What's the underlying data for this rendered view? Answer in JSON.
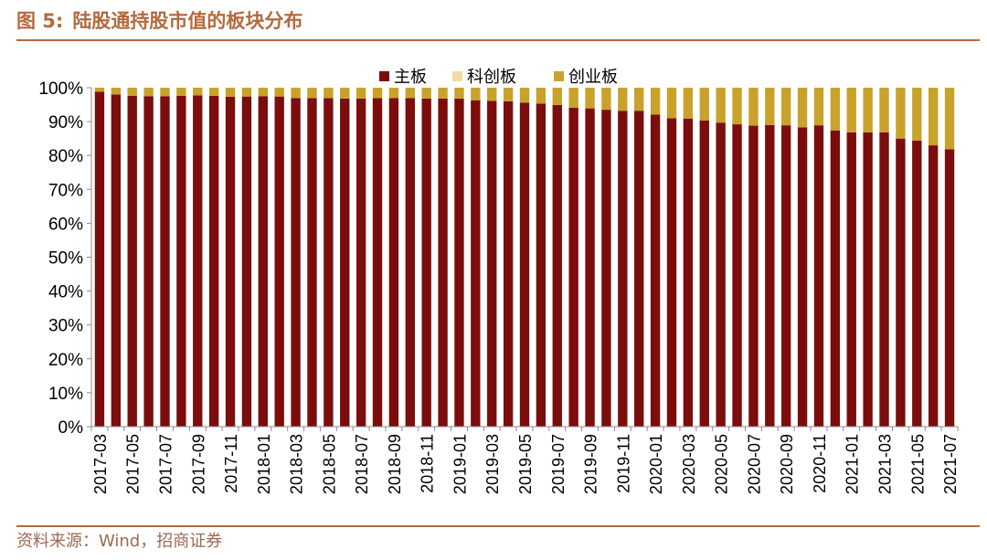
{
  "figure": {
    "label": "图 5:",
    "title": "陆股通持股市值的板块分布",
    "source": "资料来源：Wind，招商证券"
  },
  "colors": {
    "main_board": "#7b0d0d",
    "star_market": "#eedcaa",
    "chinext": "#c9a22c",
    "title": "#b36a3e",
    "axis": "#8c8c8c"
  },
  "chart_data": {
    "type": "bar",
    "stacked": true,
    "title": "陆股通持股市值的板块分布",
    "xlabel": "",
    "ylabel": "",
    "ylim": [
      0,
      100
    ],
    "yticks": [
      "0%",
      "10%",
      "20%",
      "30%",
      "40%",
      "50%",
      "60%",
      "70%",
      "80%",
      "90%",
      "100%"
    ],
    "legend_position": "top-center",
    "grid": false,
    "categories": [
      "2017-03",
      "2017-04",
      "2017-05",
      "2017-06",
      "2017-07",
      "2017-08",
      "2017-09",
      "2017-10",
      "2017-11",
      "2017-12",
      "2018-01",
      "2018-02",
      "2018-03",
      "2018-04",
      "2018-05",
      "2018-06",
      "2018-07",
      "2018-08",
      "2018-09",
      "2018-10",
      "2018-11",
      "2018-12",
      "2019-01",
      "2019-02",
      "2019-03",
      "2019-04",
      "2019-05",
      "2019-06",
      "2019-07",
      "2019-08",
      "2019-09",
      "2019-10",
      "2019-11",
      "2019-12",
      "2020-01",
      "2020-02",
      "2020-03",
      "2020-04",
      "2020-05",
      "2020-06",
      "2020-07",
      "2020-08",
      "2020-09",
      "2020-10",
      "2020-11",
      "2020-12",
      "2021-01",
      "2021-02",
      "2021-03",
      "2021-04",
      "2021-05",
      "2021-06",
      "2021-07"
    ],
    "xtick_labels": [
      "2017-03",
      "2017-05",
      "2017-07",
      "2017-09",
      "2017-11",
      "2018-01",
      "2018-03",
      "2018-05",
      "2018-07",
      "2018-09",
      "2018-11",
      "2019-01",
      "2019-03",
      "2019-05",
      "2019-07",
      "2019-09",
      "2019-11",
      "2020-01",
      "2020-03",
      "2020-05",
      "2020-07",
      "2020-09",
      "2020-11",
      "2021-01",
      "2021-03",
      "2021-05",
      "2021-07"
    ],
    "series": [
      {
        "name": "主板",
        "values": [
          98.8,
          98.0,
          97.6,
          97.5,
          97.5,
          97.6,
          97.7,
          97.6,
          97.3,
          97.4,
          97.5,
          97.4,
          96.9,
          96.9,
          96.9,
          96.8,
          96.8,
          96.9,
          96.9,
          96.9,
          96.8,
          96.8,
          96.8,
          96.3,
          96.1,
          96.0,
          95.6,
          95.3,
          94.9,
          94.1,
          93.9,
          93.5,
          93.2,
          93.2,
          92.1,
          91.0,
          90.9,
          90.3,
          89.7,
          89.2,
          88.8,
          89.0,
          88.9,
          88.3,
          88.9,
          87.4,
          86.8,
          86.8,
          86.8,
          85.0,
          84.4,
          83.0,
          81.8
        ]
      },
      {
        "name": "科创板",
        "values": [
          0,
          0,
          0,
          0,
          0,
          0,
          0,
          0,
          0,
          0,
          0,
          0,
          0,
          0,
          0,
          0,
          0,
          0,
          0,
          0,
          0,
          0,
          0,
          0,
          0,
          0,
          0,
          0,
          0,
          0,
          0,
          0,
          0,
          0,
          0,
          0,
          0,
          0,
          0,
          0,
          0,
          0,
          0,
          0,
          0,
          0,
          0,
          0,
          0,
          0,
          0,
          0,
          0
        ]
      },
      {
        "name": "创业板",
        "values": [
          1.2,
          2.0,
          2.4,
          2.5,
          2.5,
          2.4,
          2.3,
          2.4,
          2.7,
          2.6,
          2.5,
          2.6,
          3.1,
          3.1,
          3.1,
          3.2,
          3.2,
          3.1,
          3.1,
          3.1,
          3.2,
          3.2,
          3.2,
          3.7,
          3.9,
          4.0,
          4.4,
          4.7,
          5.1,
          5.9,
          6.1,
          6.5,
          6.8,
          6.8,
          7.9,
          9.0,
          9.1,
          9.7,
          10.3,
          10.8,
          11.2,
          11.0,
          11.1,
          11.7,
          11.1,
          12.6,
          13.2,
          13.2,
          13.2,
          15.0,
          15.6,
          17.0,
          18.2
        ]
      }
    ]
  }
}
